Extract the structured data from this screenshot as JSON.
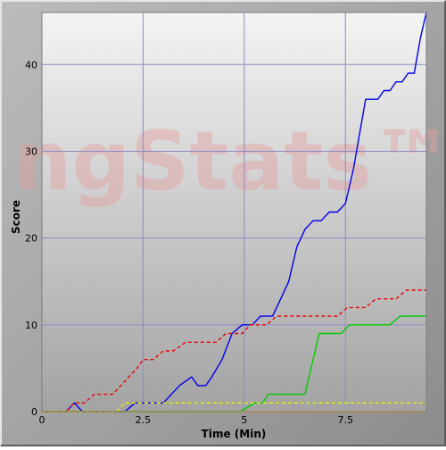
{
  "chart_data": {
    "type": "line",
    "title": "",
    "xlabel": "Time (Min)",
    "ylabel": "Score",
    "xlim": [
      0,
      9.5
    ],
    "ylim": [
      0,
      46
    ],
    "x_ticks": [
      0,
      2.5,
      5,
      7.5
    ],
    "x_tick_labels": [
      "0",
      "2.5",
      "5",
      "7.5"
    ],
    "y_ticks": [
      0,
      10,
      20,
      30,
      40
    ],
    "y_tick_labels": [
      "0",
      "10",
      "20",
      "30",
      "40"
    ],
    "grid": true,
    "legend": "none",
    "watermark": "ngStats™",
    "colors": {
      "plot_bg_top": "#f4f4f4",
      "plot_bg_bottom": "#a3a3a3",
      "grid": "#8c8cc8",
      "frame_light": "#e2e2e2",
      "frame_dark": "#6e6e6e",
      "watermark": "#e8a8a8"
    },
    "series": [
      {
        "color": "#0000ee",
        "dash": false,
        "x": [
          0,
          0.6,
          0.8,
          1.0,
          1.05,
          2.05,
          2.3,
          3.0,
          3.4,
          3.7,
          3.85,
          4.05,
          4.2,
          4.45,
          4.7,
          4.95,
          5.2,
          5.4,
          5.7,
          5.9,
          6.1,
          6.3,
          6.5,
          6.7,
          6.9,
          7.1,
          7.3,
          7.5,
          7.7,
          7.85,
          8.0,
          8.15,
          8.3,
          8.45,
          8.6,
          8.75,
          8.9,
          9.05,
          9.2,
          9.35,
          9.45,
          9.5
        ],
        "y": [
          0,
          0,
          1,
          0,
          0,
          0,
          1,
          1,
          3,
          4,
          3,
          3,
          4,
          6,
          9,
          10,
          10,
          11,
          11,
          13,
          15,
          19,
          21,
          22,
          22,
          23,
          23,
          24,
          28,
          32,
          36,
          36,
          36,
          37,
          37,
          38,
          38,
          39,
          39,
          43,
          45,
          46
        ]
      },
      {
        "color": "#ee0000",
        "dash": true,
        "x": [
          0,
          0.6,
          0.8,
          1.05,
          1.3,
          1.75,
          1.95,
          2.15,
          2.35,
          2.5,
          2.75,
          3.0,
          3.25,
          3.55,
          3.8,
          4.0,
          4.15,
          4.3,
          4.55,
          4.75,
          4.95,
          5.15,
          5.35,
          5.55,
          5.8,
          6.05,
          6.3,
          6.6,
          6.9,
          7.1,
          7.3,
          7.55,
          7.8,
          8.0,
          8.25,
          8.5,
          8.75,
          9.0,
          9.25,
          9.5
        ],
        "y": [
          0,
          0,
          1,
          1,
          2,
          2,
          3,
          4,
          5,
          6,
          6,
          7,
          7,
          8,
          8,
          8,
          8,
          8,
          9,
          9,
          9,
          10,
          10,
          10,
          11,
          11,
          11,
          11,
          11,
          11,
          11,
          12,
          12,
          12,
          13,
          13,
          13,
          14,
          14,
          14
        ]
      },
      {
        "color": "#00cc00",
        "dash": false,
        "x": [
          0,
          4.9,
          5.25,
          5.45,
          5.6,
          5.8,
          6.0,
          6.5,
          6.85,
          7.2,
          7.4,
          7.6,
          8.0,
          8.6,
          8.85,
          9.0,
          9.2,
          9.5
        ],
        "y": [
          0,
          0,
          1,
          1,
          2,
          2,
          2,
          2,
          9,
          9,
          9,
          10,
          10,
          10,
          11,
          11,
          11,
          11
        ]
      },
      {
        "color": "#eeee00",
        "dash": true,
        "x": [
          0,
          1.85,
          2.05,
          9.5
        ],
        "y": [
          0,
          0,
          1,
          1
        ]
      },
      {
        "color": "#ff9900",
        "dash": false,
        "x": [
          0,
          9.5
        ],
        "y": [
          0,
          0
        ]
      }
    ]
  }
}
